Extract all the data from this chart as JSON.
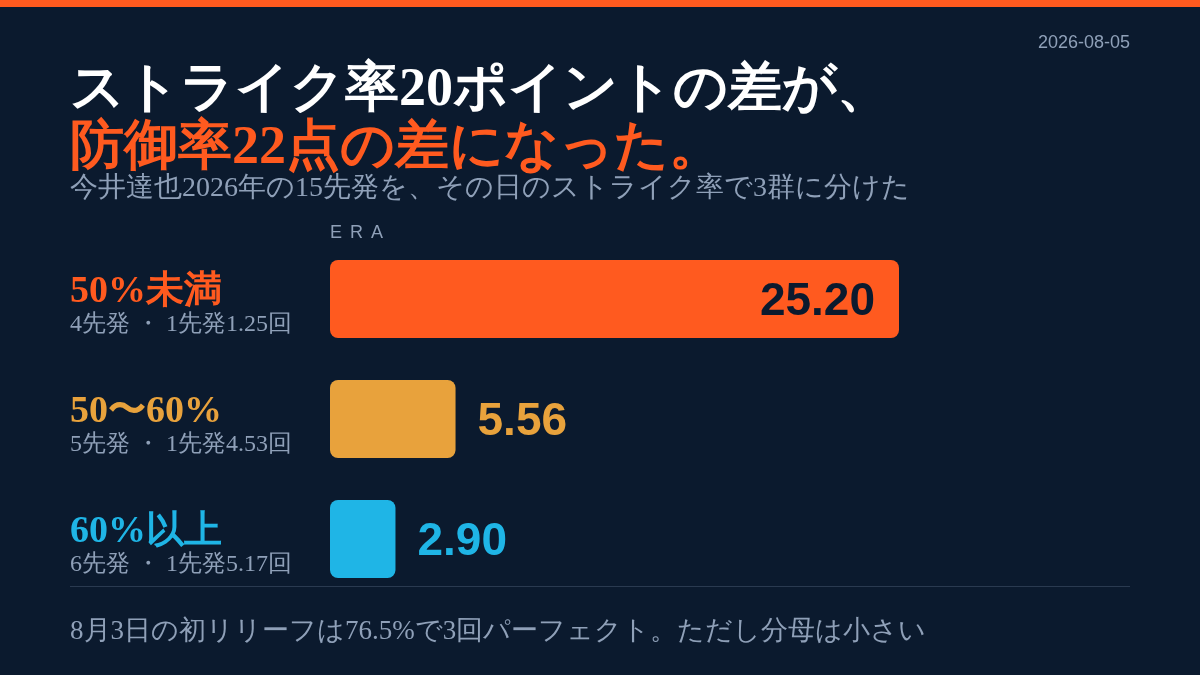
{
  "chart_data": {
    "type": "bar",
    "orientation": "horizontal",
    "title": "ストライク率20ポイントの差が、",
    "subtitle": "防御率22点の差になった。",
    "xlabel": "ERA",
    "categories": [
      "50%未満",
      "50〜60%",
      "60%以上"
    ],
    "values": [
      25.2,
      5.56,
      2.9
    ],
    "value_labels": [
      "25.20",
      "5.56",
      "2.90"
    ],
    "colors": [
      "#ff5a1f",
      "#e8a23c",
      "#1fb5e6"
    ],
    "data_labels": true,
    "legend": false,
    "grid": false,
    "annotations": [
      "2026-08-05",
      "今井達也2026年の15先発を、その日のストライク率で3群に分けた",
      "8月3日の初リリーフは76.5%で3回パーフェクト。ただし分母は小さい",
      "4先発 ・ 1先発1.25回",
      "5先発 ・ 1先発4.53回",
      "6先発 ・ 1先発5.17回"
    ]
  }
}
